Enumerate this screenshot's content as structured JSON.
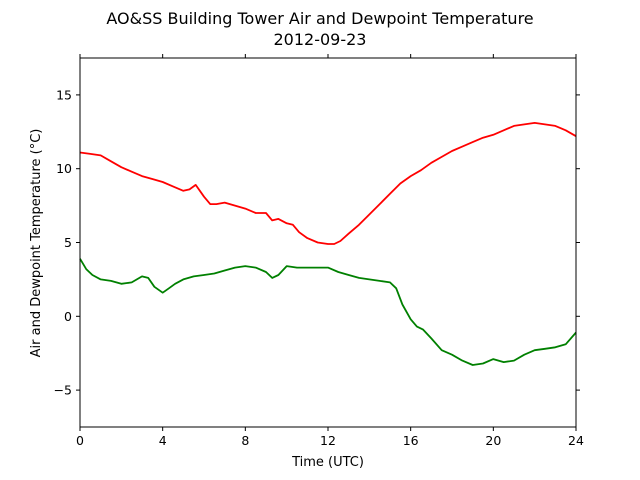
{
  "chart_data": {
    "type": "line",
    "title": "AO&SS Building Tower Air and Dewpoint Temperature",
    "subtitle": "2012-09-23",
    "xlabel": "Time (UTC)",
    "ylabel": "Air and Dewpoint Temperature (°C)",
    "xlim": [
      0,
      24
    ],
    "ylim": [
      -7.5,
      17.5
    ],
    "xticks": [
      0,
      4,
      8,
      12,
      16,
      20,
      24
    ],
    "yticks": [
      -5,
      0,
      5,
      10,
      15
    ],
    "grid": false,
    "legend": "none",
    "series": [
      {
        "color": "#ff0000",
        "x": [
          0,
          0.5,
          1,
          1.5,
          2,
          2.5,
          3,
          3.5,
          4,
          4.5,
          5,
          5.3,
          5.6,
          6,
          6.3,
          6.6,
          7,
          7.5,
          8,
          8.5,
          9,
          9.3,
          9.6,
          10,
          10.3,
          10.6,
          11,
          11.5,
          12,
          12.3,
          12.6,
          13,
          13.5,
          14,
          14.5,
          15,
          15.5,
          16,
          16.5,
          17,
          17.5,
          18,
          18.5,
          19,
          19.5,
          20,
          20.5,
          21,
          21.5,
          22,
          22.5,
          23,
          23.5,
          24
        ],
        "y": [
          11.1,
          11.0,
          10.9,
          10.5,
          10.1,
          9.8,
          9.5,
          9.3,
          9.1,
          8.8,
          8.5,
          8.6,
          8.9,
          8.1,
          7.6,
          7.6,
          7.7,
          7.5,
          7.3,
          7.0,
          7.0,
          6.5,
          6.6,
          6.3,
          6.2,
          5.7,
          5.3,
          5.0,
          4.9,
          4.9,
          5.1,
          5.6,
          6.2,
          6.9,
          7.6,
          8.3,
          9.0,
          9.5,
          9.9,
          10.4,
          10.8,
          11.2,
          11.5,
          11.8,
          12.1,
          12.3,
          12.6,
          12.9,
          13.0,
          13.1,
          13.0,
          12.9,
          12.6,
          12.2
        ]
      },
      {
        "color": "#008000",
        "x": [
          0,
          0.3,
          0.6,
          1,
          1.5,
          2,
          2.5,
          3,
          3.3,
          3.6,
          4,
          4.3,
          4.6,
          5,
          5.5,
          6,
          6.5,
          7,
          7.5,
          8,
          8.5,
          9,
          9.3,
          9.6,
          10,
          10.5,
          11,
          11.5,
          12,
          12.5,
          13,
          13.5,
          14,
          14.5,
          15,
          15.3,
          15.6,
          16,
          16.3,
          16.6,
          17,
          17.5,
          18,
          18.5,
          19,
          19.5,
          20,
          20.5,
          21,
          21.5,
          22,
          22.5,
          23,
          23.5,
          24
        ],
        "y": [
          3.9,
          3.2,
          2.8,
          2.5,
          2.4,
          2.2,
          2.3,
          2.7,
          2.6,
          2.0,
          1.6,
          1.9,
          2.2,
          2.5,
          2.7,
          2.8,
          2.9,
          3.1,
          3.3,
          3.4,
          3.3,
          3.0,
          2.6,
          2.8,
          3.4,
          3.3,
          3.3,
          3.3,
          3.3,
          3.0,
          2.8,
          2.6,
          2.5,
          2.4,
          2.3,
          1.9,
          0.8,
          -0.2,
          -0.7,
          -0.9,
          -1.5,
          -2.3,
          -2.6,
          -3.0,
          -3.3,
          -3.2,
          -2.9,
          -3.1,
          -3.0,
          -2.6,
          -2.3,
          -2.2,
          -2.1,
          -1.9,
          -1.1
        ]
      }
    ]
  }
}
